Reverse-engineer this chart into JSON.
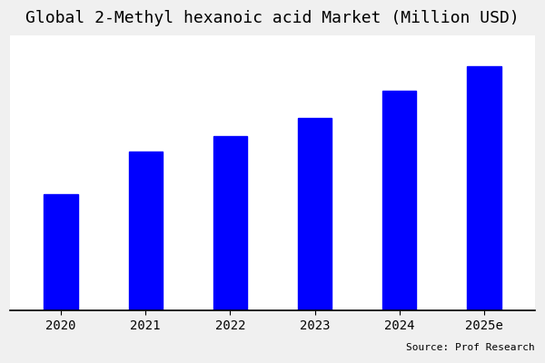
{
  "title": "Global 2-Methyl hexanoic acid Market (Million USD)",
  "categories": [
    "2020",
    "2021",
    "2022",
    "2023",
    "2024",
    "2025e"
  ],
  "values": [
    38,
    52,
    57,
    63,
    72,
    80
  ],
  "bar_color": "#0000FF",
  "plot_bg_color": "#ffffff",
  "fig_bg_color": "#f0f0f0",
  "source_text": "Source: Prof Research",
  "title_fontsize": 13,
  "tick_fontsize": 10,
  "source_fontsize": 8,
  "ylim": [
    0,
    90
  ],
  "bar_width": 0.4
}
